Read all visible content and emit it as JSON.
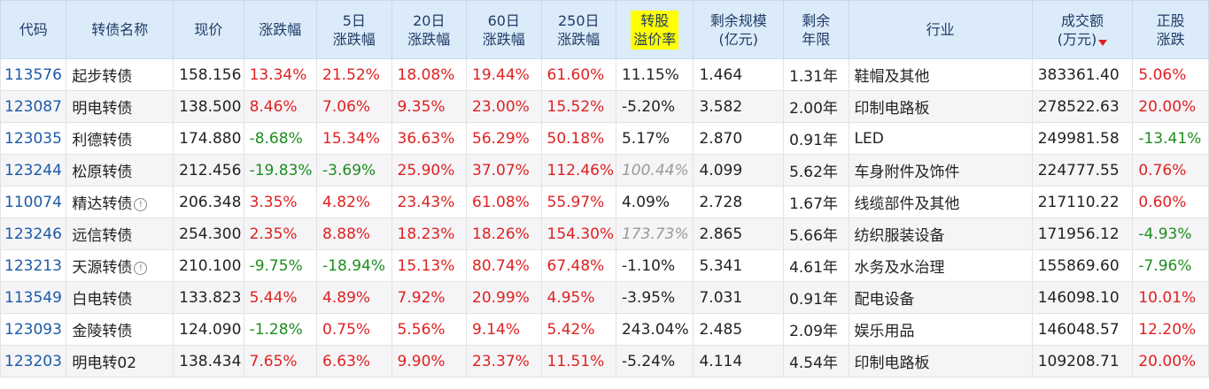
{
  "headers": {
    "code": "代码",
    "name": "转债名称",
    "price": "现价",
    "change": "涨跌幅",
    "change5d_l1": "5日",
    "change5d_l2": "涨跌幅",
    "change20d_l1": "20日",
    "change20d_l2": "涨跌幅",
    "change60d_l1": "60日",
    "change60d_l2": "涨跌幅",
    "change250d_l1": "250日",
    "change250d_l2": "涨跌幅",
    "premium_l1": "转股",
    "premium_l2": "溢价率",
    "remaining_scale_l1": "剩余规模",
    "remaining_scale_l2": "(亿元)",
    "remaining_years_l1": "剩余",
    "remaining_years_l2": "年限",
    "industry": "行业",
    "turnover_l1": "成交额",
    "turnover_l2": "(万元)",
    "stock_change_l1": "正股",
    "stock_change_l2": "涨跌"
  },
  "colors": {
    "header_bg": "#dcebf9",
    "highlight": "#ffff00",
    "up": "#e02020",
    "down": "#1e8c1e",
    "code": "#1c5aa8"
  },
  "rows": [
    {
      "code": "113576",
      "name": "起步转债",
      "info": false,
      "price": "158.156",
      "change": "13.34%",
      "change5d": "21.52%",
      "change20d": "18.08%",
      "change60d": "19.44%",
      "change250d": "61.60%",
      "premium": "11.15%",
      "premium_grey": false,
      "remaining_scale": "1.464",
      "remaining_years": "1.31年",
      "industry": "鞋帽及其他",
      "turnover": "383361.40",
      "stock_change": "5.06%"
    },
    {
      "code": "123087",
      "name": "明电转债",
      "info": false,
      "price": "138.500",
      "change": "8.46%",
      "change5d": "7.06%",
      "change20d": "9.35%",
      "change60d": "23.00%",
      "change250d": "15.52%",
      "premium": "-5.20%",
      "premium_grey": false,
      "remaining_scale": "3.582",
      "remaining_years": "2.00年",
      "industry": "印制电路板",
      "turnover": "278522.63",
      "stock_change": "20.00%"
    },
    {
      "code": "123035",
      "name": "利德转债",
      "info": false,
      "price": "174.880",
      "change": "-8.68%",
      "change5d": "15.34%",
      "change20d": "36.63%",
      "change60d": "56.29%",
      "change250d": "50.18%",
      "premium": "5.17%",
      "premium_grey": false,
      "remaining_scale": "2.870",
      "remaining_years": "0.91年",
      "industry": "LED",
      "turnover": "249981.58",
      "stock_change": "-13.41%"
    },
    {
      "code": "123244",
      "name": "松原转债",
      "info": false,
      "price": "212.456",
      "change": "-19.83%",
      "change5d": "-3.69%",
      "change20d": "25.90%",
      "change60d": "37.07%",
      "change250d": "112.46%",
      "premium": "100.44%",
      "premium_grey": true,
      "remaining_scale": "4.099",
      "remaining_years": "5.62年",
      "industry": "车身附件及饰件",
      "turnover": "224777.55",
      "stock_change": "0.76%"
    },
    {
      "code": "110074",
      "name": "精达转债",
      "info": true,
      "price": "206.348",
      "change": "3.35%",
      "change5d": "4.82%",
      "change20d": "23.43%",
      "change60d": "61.08%",
      "change250d": "55.97%",
      "premium": "4.09%",
      "premium_grey": false,
      "remaining_scale": "2.728",
      "remaining_years": "1.67年",
      "industry": "线缆部件及其他",
      "turnover": "217110.22",
      "stock_change": "0.60%"
    },
    {
      "code": "123246",
      "name": "远信转债",
      "info": false,
      "price": "254.300",
      "change": "2.35%",
      "change5d": "8.88%",
      "change20d": "18.23%",
      "change60d": "18.26%",
      "change250d": "154.30%",
      "premium": "173.73%",
      "premium_grey": true,
      "remaining_scale": "2.865",
      "remaining_years": "5.66年",
      "industry": "纺织服装设备",
      "turnover": "171956.12",
      "stock_change": "-4.93%"
    },
    {
      "code": "123213",
      "name": "天源转债",
      "info": true,
      "price": "210.100",
      "change": "-9.75%",
      "change5d": "-18.94%",
      "change20d": "15.13%",
      "change60d": "80.74%",
      "change250d": "67.48%",
      "premium": "-1.10%",
      "premium_grey": false,
      "remaining_scale": "5.341",
      "remaining_years": "4.61年",
      "industry": "水务及水治理",
      "turnover": "155869.60",
      "stock_change": "-7.96%"
    },
    {
      "code": "113549",
      "name": "白电转债",
      "info": false,
      "price": "133.823",
      "change": "5.44%",
      "change5d": "4.89%",
      "change20d": "7.92%",
      "change60d": "20.99%",
      "change250d": "4.95%",
      "premium": "-3.95%",
      "premium_grey": false,
      "remaining_scale": "7.031",
      "remaining_years": "0.91年",
      "industry": "配电设备",
      "turnover": "146098.10",
      "stock_change": "10.01%"
    },
    {
      "code": "123093",
      "name": "金陵转债",
      "info": false,
      "price": "124.090",
      "change": "-1.28%",
      "change5d": "0.75%",
      "change20d": "5.56%",
      "change60d": "9.14%",
      "change250d": "5.42%",
      "premium": "243.04%",
      "premium_grey": false,
      "remaining_scale": "2.485",
      "remaining_years": "2.09年",
      "industry": "娱乐用品",
      "turnover": "146048.57",
      "stock_change": "12.20%"
    },
    {
      "code": "123203",
      "name": "明电转02",
      "info": false,
      "price": "138.434",
      "change": "7.65%",
      "change5d": "6.63%",
      "change20d": "9.90%",
      "change60d": "23.37%",
      "change250d": "11.51%",
      "premium": "-5.24%",
      "premium_grey": false,
      "remaining_scale": "4.114",
      "remaining_years": "4.54年",
      "industry": "印制电路板",
      "turnover": "109208.71",
      "stock_change": "20.00%"
    }
  ]
}
